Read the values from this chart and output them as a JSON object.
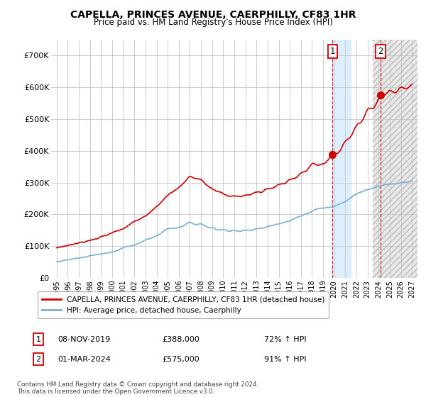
{
  "title": "CAPELLA, PRINCES AVENUE, CAERPHILLY, CF83 1HR",
  "subtitle": "Price paid vs. HM Land Registry's House Price Index (HPI)",
  "legend_label_red": "CAPELLA, PRINCES AVENUE, CAERPHILLY, CF83 1HR (detached house)",
  "legend_label_blue": "HPI: Average price, detached house, Caerphilly",
  "footer": "Contains HM Land Registry data © Crown copyright and database right 2024.\nThis data is licensed under the Open Government Licence v3.0.",
  "annotation1_label": "1",
  "annotation1_date": "08-NOV-2019",
  "annotation1_price": "£388,000",
  "annotation1_hpi": "72% ↑ HPI",
  "annotation2_label": "2",
  "annotation2_date": "01-MAR-2024",
  "annotation2_price": "£575,000",
  "annotation2_hpi": "91% ↑ HPI",
  "shade1_start": 2019.85,
  "shade1_end": 2021.5,
  "shade2_start": 2023.5,
  "shade2_end": 2027.5,
  "marker1_x": 2019.85,
  "marker1_y": 388000,
  "marker2_x": 2024.17,
  "marker2_y": 575000,
  "ylim": [
    0,
    750000
  ],
  "xlim_left": 1994.5,
  "xlim_right": 2027.5,
  "yticks": [
    0,
    100000,
    200000,
    300000,
    400000,
    500000,
    600000,
    700000
  ],
  "ytick_labels": [
    "£0",
    "£100K",
    "£200K",
    "£300K",
    "£400K",
    "£500K",
    "£600K",
    "£700K"
  ],
  "xticks": [
    1995,
    1996,
    1997,
    1998,
    1999,
    2000,
    2001,
    2002,
    2003,
    2004,
    2005,
    2006,
    2007,
    2008,
    2009,
    2010,
    2011,
    2012,
    2013,
    2014,
    2015,
    2016,
    2017,
    2018,
    2019,
    2020,
    2021,
    2022,
    2023,
    2024,
    2025,
    2026,
    2027
  ],
  "background_color": "#ffffff",
  "plot_bg_color": "#ffffff",
  "grid_color": "#cccccc",
  "red_color": "#cc0000",
  "blue_color": "#7bafd4",
  "shade1_color": "#ddeeff",
  "shade2_color": "#e8e8e8"
}
